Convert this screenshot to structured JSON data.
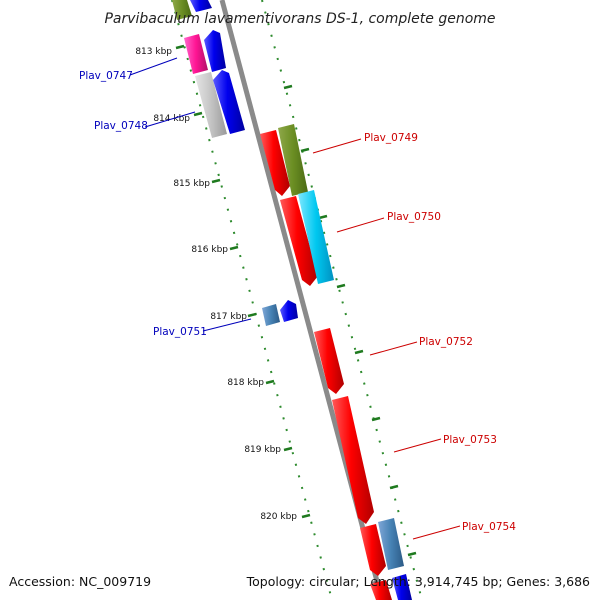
{
  "title": "Parvibaculum lavamentivorans DS-1, complete genome",
  "footer": {
    "accession": "Accession: NC_009719",
    "summary": "Topology: circular; Length: 3,914,745 bp; Genes: 3,686"
  },
  "ruler": [
    {
      "label": "813 kbp"
    },
    {
      "label": "814 kbp"
    },
    {
      "label": "815 kbp"
    },
    {
      "label": "816 kbp"
    },
    {
      "label": "817 kbp"
    },
    {
      "label": "818 kbp"
    },
    {
      "label": "819 kbp"
    },
    {
      "label": "820 kbp"
    }
  ],
  "colors": {
    "backbone": "#8a8a8a",
    "ruler": "#1f7a1f",
    "forward_label": "#cc0000",
    "reverse_label": "#0000bb"
  },
  "genes": [
    {
      "label": "Plav_0747",
      "strand": "reverse",
      "label_color": "#0000bb"
    },
    {
      "label": "Plav_0748",
      "strand": "reverse",
      "label_color": "#0000bb"
    },
    {
      "label": "Plav_0749",
      "strand": "forward",
      "label_color": "#cc0000"
    },
    {
      "label": "Plav_0750",
      "strand": "forward",
      "label_color": "#cc0000"
    },
    {
      "label": "Plav_0751",
      "strand": "reverse",
      "label_color": "#0000bb"
    },
    {
      "label": "Plav_0752",
      "strand": "forward",
      "label_color": "#cc0000"
    },
    {
      "label": "Plav_0753",
      "strand": "forward",
      "label_color": "#cc0000"
    },
    {
      "label": "Plav_0754",
      "strand": "forward",
      "label_color": "#cc0000"
    }
  ]
}
